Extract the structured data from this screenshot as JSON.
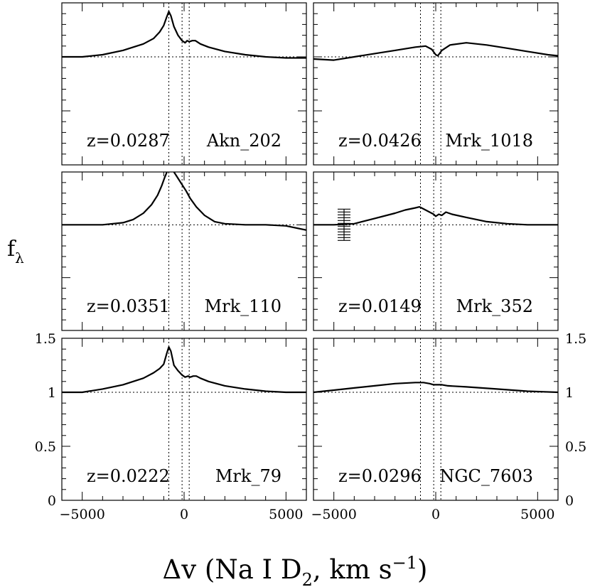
{
  "chart_data": {
    "type": "line",
    "ylabel": "f",
    "ylabel_sub": "λ",
    "xlabel_pre": "Δv (Na I D",
    "xlabel_sub": "2",
    "xlabel_mid": ", km s",
    "xlabel_sup": "−1",
    "xlabel_post": ")",
    "xlim": [
      -6000,
      6000
    ],
    "ylim": [
      0,
      1.5
    ],
    "x_ticks": [
      -5000,
      0,
      5000
    ],
    "x_tick_labels": [
      "−5000",
      "0",
      "5000"
    ],
    "y_ticks": [
      0,
      0.5,
      1,
      1.5
    ],
    "y_tick_labels": [
      "0",
      "0.5",
      "1",
      "1.5"
    ],
    "continuum_level": 1,
    "vlines": [
      -750,
      -100,
      250
    ],
    "panels": [
      {
        "redshift": "z=0.0287",
        "name": "Akn_202",
        "spectrum": [
          [
            -6000,
            1.0
          ],
          [
            -5000,
            1.0
          ],
          [
            -4000,
            1.02
          ],
          [
            -3000,
            1.06
          ],
          [
            -2000,
            1.12
          ],
          [
            -1500,
            1.17
          ],
          [
            -1200,
            1.23
          ],
          [
            -1000,
            1.29
          ],
          [
            -850,
            1.37
          ],
          [
            -750,
            1.42
          ],
          [
            -650,
            1.38
          ],
          [
            -500,
            1.28
          ],
          [
            -300,
            1.2
          ],
          [
            -100,
            1.15
          ],
          [
            50,
            1.13
          ],
          [
            150,
            1.15
          ],
          [
            250,
            1.14
          ],
          [
            400,
            1.15
          ],
          [
            550,
            1.15
          ],
          [
            800,
            1.12
          ],
          [
            1200,
            1.09
          ],
          [
            2000,
            1.05
          ],
          [
            3000,
            1.02
          ],
          [
            4000,
            1.0
          ],
          [
            5000,
            0.99
          ],
          [
            6000,
            0.99
          ]
        ]
      },
      {
        "redshift": "z=0.0426",
        "name": "Mrk_1018",
        "spectrum": [
          [
            -6000,
            0.98
          ],
          [
            -5000,
            0.97
          ],
          [
            -4000,
            1.0
          ],
          [
            -3000,
            1.03
          ],
          [
            -2000,
            1.06
          ],
          [
            -1000,
            1.09
          ],
          [
            -500,
            1.1
          ],
          [
            -200,
            1.07
          ],
          [
            0,
            1.02
          ],
          [
            100,
            1.01
          ],
          [
            300,
            1.06
          ],
          [
            700,
            1.11
          ],
          [
            1500,
            1.13
          ],
          [
            2500,
            1.11
          ],
          [
            3500,
            1.08
          ],
          [
            4500,
            1.05
          ],
          [
            5500,
            1.02
          ],
          [
            6000,
            1.01
          ]
        ]
      },
      {
        "redshift": "z=0.0351",
        "name": "Mrk_110",
        "spectrum": [
          [
            -6000,
            1.0
          ],
          [
            -4000,
            1.0
          ],
          [
            -3000,
            1.02
          ],
          [
            -2500,
            1.05
          ],
          [
            -2000,
            1.11
          ],
          [
            -1600,
            1.19
          ],
          [
            -1300,
            1.28
          ],
          [
            -1100,
            1.37
          ],
          [
            -950,
            1.45
          ],
          [
            -800,
            1.52
          ],
          [
            -700,
            1.55
          ],
          [
            -500,
            1.5
          ],
          [
            -300,
            1.44
          ],
          [
            -100,
            1.38
          ],
          [
            100,
            1.32
          ],
          [
            300,
            1.25
          ],
          [
            600,
            1.17
          ],
          [
            1000,
            1.09
          ],
          [
            1500,
            1.03
          ],
          [
            2000,
            1.01
          ],
          [
            3000,
            1.0
          ],
          [
            4000,
            1.0
          ],
          [
            5000,
            0.99
          ],
          [
            6000,
            0.95
          ]
        ]
      },
      {
        "redshift": "z=0.0149",
        "name": "Mrk_352",
        "spectrum": [
          [
            -6000,
            1.0
          ],
          [
            -5000,
            1.0
          ],
          [
            -4000,
            1.01
          ],
          [
            -3000,
            1.06
          ],
          [
            -2000,
            1.11
          ],
          [
            -1500,
            1.14
          ],
          [
            -1000,
            1.16
          ],
          [
            -800,
            1.17
          ],
          [
            -600,
            1.15
          ],
          [
            -300,
            1.12
          ],
          [
            -100,
            1.1
          ],
          [
            0,
            1.08
          ],
          [
            150,
            1.1
          ],
          [
            300,
            1.09
          ],
          [
            500,
            1.12
          ],
          [
            800,
            1.1
          ],
          [
            1500,
            1.07
          ],
          [
            2500,
            1.03
          ],
          [
            3500,
            1.01
          ],
          [
            4500,
            1.0
          ],
          [
            5500,
            1.0
          ],
          [
            6000,
            1.0
          ]
        ]
      },
      {
        "redshift": "z=0.0222",
        "name": "Mrk_79",
        "spectrum": [
          [
            -6000,
            1.0
          ],
          [
            -5000,
            1.0
          ],
          [
            -4000,
            1.03
          ],
          [
            -3000,
            1.07
          ],
          [
            -2000,
            1.13
          ],
          [
            -1500,
            1.18
          ],
          [
            -1200,
            1.22
          ],
          [
            -1000,
            1.26
          ],
          [
            -850,
            1.36
          ],
          [
            -750,
            1.42
          ],
          [
            -650,
            1.38
          ],
          [
            -500,
            1.25
          ],
          [
            -300,
            1.2
          ],
          [
            -100,
            1.16
          ],
          [
            50,
            1.14
          ],
          [
            200,
            1.15
          ],
          [
            300,
            1.14
          ],
          [
            450,
            1.15
          ],
          [
            600,
            1.15
          ],
          [
            800,
            1.13
          ],
          [
            1200,
            1.1
          ],
          [
            2000,
            1.06
          ],
          [
            3000,
            1.03
          ],
          [
            4000,
            1.01
          ],
          [
            5000,
            1.0
          ],
          [
            6000,
            1.0
          ]
        ]
      },
      {
        "redshift": "z=0.0296",
        "name": "NGC_7603",
        "spectrum": [
          [
            -6000,
            1.0
          ],
          [
            -5000,
            1.02
          ],
          [
            -4000,
            1.04
          ],
          [
            -3000,
            1.06
          ],
          [
            -2000,
            1.08
          ],
          [
            -1000,
            1.09
          ],
          [
            -600,
            1.09
          ],
          [
            -300,
            1.08
          ],
          [
            -100,
            1.07
          ],
          [
            100,
            1.07
          ],
          [
            300,
            1.07
          ],
          [
            600,
            1.06
          ],
          [
            1500,
            1.05
          ],
          [
            3000,
            1.03
          ],
          [
            4500,
            1.01
          ],
          [
            6000,
            1.0
          ]
        ]
      }
    ]
  }
}
